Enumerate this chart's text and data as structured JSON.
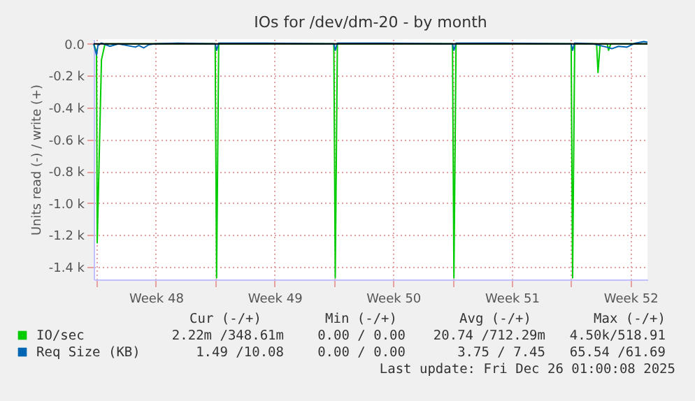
{
  "chart_data": {
    "type": "line",
    "title": "IOs for /dev/dm-20 - by month",
    "ylabel": "Units read (-) / write (+)",
    "xlim": [
      "2025-11-23T20:00",
      "2025-12-26T12:00"
    ],
    "xticks": [
      {
        "value": "2025-11-24T00:00",
        "label": null
      },
      {
        "value": "2025-11-27T12:00",
        "label": "Week 48"
      },
      {
        "value": "2025-12-01T00:00",
        "label": null
      },
      {
        "value": "2025-12-04T12:00",
        "label": "Week 49"
      },
      {
        "value": "2025-12-08T00:00",
        "label": null
      },
      {
        "value": "2025-12-11T12:00",
        "label": "Week 50"
      },
      {
        "value": "2025-12-15T00:00",
        "label": null
      },
      {
        "value": "2025-12-18T12:00",
        "label": "Week 51"
      },
      {
        "value": "2025-12-22T00:00",
        "label": null
      },
      {
        "value": "2025-12-25T12:00",
        "label": "Week 52"
      }
    ],
    "ylim": [
      -1480,
      30
    ],
    "yticks": [
      {
        "value": 0,
        "label": "0.0"
      },
      {
        "value": -200,
        "label": "-0.2 k"
      },
      {
        "value": -400,
        "label": "-0.4 k"
      },
      {
        "value": -600,
        "label": "-0.6 k"
      },
      {
        "value": -800,
        "label": "-0.8 k"
      },
      {
        "value": -1000,
        "label": "-1.0 k"
      },
      {
        "value": -1200,
        "label": "-1.2 k"
      },
      {
        "value": -1400,
        "label": "-1.4 k"
      }
    ],
    "grid": true,
    "legend": "bottom",
    "ref_lines": [
      {
        "axis": "y",
        "value": 0,
        "color": "#000000"
      }
    ],
    "series": [
      {
        "name": "IO/sec",
        "color": "#00cc00",
        "x": [
          "2025-11-23T20:00",
          "2025-11-24T00:00",
          "2025-11-24T01:00",
          "2025-11-24T07:00",
          "2025-11-24T12:00",
          "2025-12-01T00:00",
          "2025-12-01T02:00",
          "2025-12-01T05:00",
          "2025-12-08T00:00",
          "2025-12-08T02:00",
          "2025-12-08T05:00",
          "2025-12-15T00:00",
          "2025-12-15T02:00",
          "2025-12-15T05:00",
          "2025-12-22T00:00",
          "2025-12-22T02:00",
          "2025-12-22T05:00",
          "2025-12-23T12:00",
          "2025-12-23T14:00",
          "2025-12-23T17:00",
          "2025-12-24T03:00",
          "2025-12-24T05:00",
          "2025-12-24T08:00",
          "2025-12-26T12:00"
        ],
        "values": [
          0,
          -50,
          -1250,
          -100,
          0,
          0,
          -1470,
          0,
          0,
          -1470,
          0,
          0,
          -1470,
          0,
          0,
          -1470,
          0,
          0,
          -180,
          0,
          0,
          -40,
          0,
          0
        ]
      },
      {
        "name": "Req Size (KB)",
        "color": "#0066b3",
        "x": [
          "2025-11-23T20:00",
          "2025-11-24T00:00",
          "2025-11-24T02:00",
          "2025-11-24T07:00",
          "2025-11-24T19:00",
          "2025-11-25T07:00",
          "2025-11-26T07:00",
          "2025-11-26T12:00",
          "2025-11-26T19:00",
          "2025-11-27T02:00",
          "2025-11-27T10:00",
          "2025-11-28T19:00",
          "2025-12-01T00:00",
          "2025-12-01T02:00",
          "2025-12-01T05:00",
          "2025-12-04T00:00",
          "2025-12-08T00:00",
          "2025-12-08T02:00",
          "2025-12-08T05:00",
          "2025-12-11T00:00",
          "2025-12-15T00:00",
          "2025-12-15T02:00",
          "2025-12-15T05:00",
          "2025-12-18T00:00",
          "2025-12-22T00:00",
          "2025-12-22T02:00",
          "2025-12-22T05:00",
          "2025-12-23T07:00",
          "2025-12-24T02:00",
          "2025-12-24T10:00",
          "2025-12-24T19:00",
          "2025-12-25T07:00",
          "2025-12-25T19:00",
          "2025-12-26T07:00",
          "2025-12-26T12:00"
        ],
        "values": [
          0,
          -70,
          -10,
          5,
          -15,
          0,
          -20,
          -10,
          -25,
          -5,
          0,
          5,
          0,
          -40,
          5,
          5,
          0,
          -40,
          5,
          5,
          0,
          -40,
          5,
          5,
          0,
          -40,
          5,
          0,
          -20,
          -30,
          -15,
          -20,
          5,
          15,
          10
        ]
      }
    ],
    "annotations": [
      "Cur (-/+)",
      "Min (-/+)",
      "Avg (-/+)",
      "Max (-/+)",
      "2.22m /348.61m",
      "0.00 / 0.00",
      "20.74 /712.29m",
      "4.50k/518.91",
      "1.49 /10.08",
      "0.00 / 0.00",
      "3.75 / 7.45",
      "65.54 /61.69",
      "Last update: Fri Dec 26 01:00:08 2025"
    ]
  }
}
